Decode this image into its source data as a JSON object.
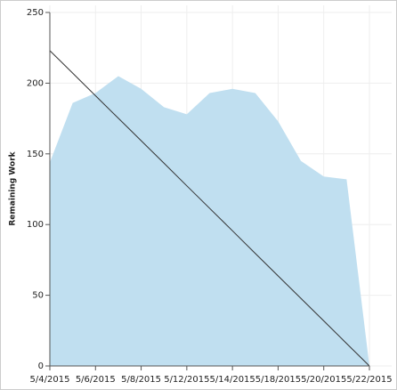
{
  "chart_data": {
    "type": "area",
    "y_label": "Remaining Work",
    "categories": [
      "5/4/2015",
      null,
      "5/6/2015",
      null,
      "5/8/2015",
      null,
      "5/12/2015",
      null,
      "5/14/2015",
      null,
      "5/18/2015",
      null,
      "5/20/2015",
      null,
      "5/22/2015"
    ],
    "series": [
      {
        "color": "#c0dff0",
        "kind": "area",
        "values": [
          144,
          186,
          193,
          205,
          196,
          183,
          178,
          193,
          196,
          193,
          173,
          145,
          134,
          132,
          0
        ]
      },
      {
        "color": "#333333",
        "kind": "line",
        "values": [
          223,
          207.1,
          191.1,
          175.2,
          159.3,
          143.4,
          127.4,
          111.5,
          95.6,
          79.6,
          63.7,
          47.8,
          31.9,
          15.9,
          0
        ]
      }
    ],
    "ylim": [
      0,
      250
    ],
    "yticks": [
      0,
      50,
      100,
      150,
      200,
      250
    ],
    "grid": true
  }
}
